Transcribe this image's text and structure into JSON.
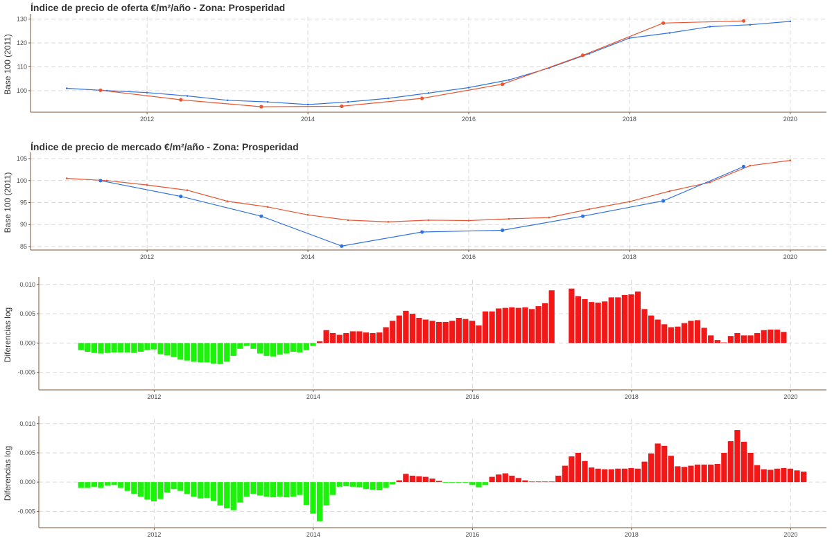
{
  "colors": {
    "red": "#f21818",
    "green": "#1bf30a",
    "blue": "#2f72e0",
    "orange": "#e9542f"
  },
  "chart_data": [
    {
      "type": "line",
      "title": "Índice de precio de oferta €/m²/año - Zona: Prosperidad",
      "ylabel": "Base 100 (2011)",
      "xlabel": "",
      "xlim": [
        2010.55,
        2020.45
      ],
      "ylim": [
        91.0,
        131.0
      ],
      "x_ticks": [
        {
          "value": 2012,
          "label": "2012"
        },
        {
          "value": 2014,
          "label": "2014"
        },
        {
          "value": 2016,
          "label": "2016"
        },
        {
          "value": 2018,
          "label": "2018"
        },
        {
          "value": 2020,
          "label": "2020"
        }
      ],
      "y_ticks": [
        {
          "value": 100,
          "label": "100"
        },
        {
          "value": 110,
          "label": "110"
        },
        {
          "value": 120,
          "label": "120"
        },
        {
          "value": 130,
          "label": "130"
        }
      ],
      "series": [
        {
          "color": "#2f72e0",
          "marker": "small",
          "x": [
            2011.0,
            2011.5,
            2012.0,
            2012.5,
            2013.0,
            2013.5,
            2014.0,
            2014.5,
            2015.0,
            2015.5,
            2016.0,
            2016.5,
            2017.0,
            2017.5,
            2018.0,
            2018.5,
            2019.0,
            2019.5,
            2020.0
          ],
          "y": [
            101.0,
            100.0,
            99.2,
            97.8,
            96.0,
            95.3,
            94.2,
            95.3,
            96.8,
            99.0,
            101.3,
            104.5,
            109.5,
            115.5,
            122.0,
            124.2,
            126.8,
            127.6,
            129.0
          ]
        },
        {
          "color": "#e9542f",
          "marker": "large",
          "x": [
            2011.42,
            2012.42,
            2013.42,
            2014.42,
            2015.42,
            2016.42,
            2017.42,
            2018.42,
            2019.42
          ],
          "y": [
            100.2,
            96.2,
            93.3,
            93.5,
            96.8,
            102.7,
            114.8,
            128.3,
            129.2
          ]
        }
      ]
    },
    {
      "type": "line",
      "title": "Índice de precio de mercado €/m²/año - Zona: Prosperidad",
      "ylabel": "Base 100 (2011)",
      "xlabel": "",
      "xlim": [
        2010.55,
        2020.45
      ],
      "ylim": [
        84.2,
        105.8
      ],
      "x_ticks": [
        {
          "value": 2012,
          "label": "2012"
        },
        {
          "value": 2014,
          "label": "2014"
        },
        {
          "value": 2016,
          "label": "2016"
        },
        {
          "value": 2018,
          "label": "2018"
        },
        {
          "value": 2020,
          "label": "2020"
        }
      ],
      "y_ticks": [
        {
          "value": 85,
          "label": "85"
        },
        {
          "value": 90,
          "label": "90"
        },
        {
          "value": 95,
          "label": "95"
        },
        {
          "value": 100,
          "label": "100"
        },
        {
          "value": 105,
          "label": "105"
        }
      ],
      "series": [
        {
          "color": "#e9542f",
          "marker": "small",
          "x": [
            2011.0,
            2011.5,
            2012.0,
            2012.5,
            2013.0,
            2013.5,
            2014.0,
            2014.5,
            2015.0,
            2015.5,
            2016.0,
            2016.5,
            2017.0,
            2017.5,
            2018.0,
            2018.5,
            2019.0,
            2019.5,
            2020.0
          ],
          "y": [
            100.5,
            100.0,
            99.0,
            97.8,
            95.3,
            94.0,
            92.2,
            91.0,
            90.6,
            91.0,
            90.9,
            91.3,
            91.6,
            93.5,
            95.2,
            97.6,
            99.6,
            103.4,
            104.6
          ]
        },
        {
          "color": "#2f72e0",
          "marker": "large",
          "x": [
            2011.42,
            2012.42,
            2013.42,
            2014.42,
            2015.42,
            2016.42,
            2017.42,
            2018.42,
            2019.42
          ],
          "y": [
            100.0,
            96.4,
            91.9,
            85.1,
            88.3,
            88.7,
            91.9,
            95.4,
            103.2
          ]
        }
      ]
    },
    {
      "type": "bar",
      "title": "",
      "ylabel": "Diferencias log",
      "xlabel": "",
      "xlim": [
        2010.55,
        2020.45
      ],
      "ylim": [
        -0.008,
        0.0108
      ],
      "x_ticks": [
        {
          "value": 2012,
          "label": "2012"
        },
        {
          "value": 2014,
          "label": "2014"
        },
        {
          "value": 2016,
          "label": "2016"
        },
        {
          "value": 2018,
          "label": "2018"
        },
        {
          "value": 2020,
          "label": "2020"
        }
      ],
      "y_ticks": [
        {
          "value": -0.005,
          "label": "-0.005"
        },
        {
          "value": 0,
          "label": "0.000"
        },
        {
          "value": 0.005,
          "label": "0.005"
        },
        {
          "value": 0.01,
          "label": "0.010"
        }
      ],
      "positive_color": "#f21818",
      "negative_color": "#1bf30a",
      "x_start": 2011.08,
      "x_step": 0.08333,
      "values": [
        -0.0012,
        -0.0015,
        -0.0017,
        -0.0018,
        -0.0017,
        -0.0016,
        -0.0016,
        -0.0016,
        -0.0017,
        -0.0015,
        -0.0012,
        -0.0011,
        -0.0019,
        -0.0021,
        -0.0024,
        -0.0028,
        -0.003,
        -0.0032,
        -0.0033,
        -0.0033,
        -0.0035,
        -0.0036,
        -0.0032,
        -0.0022,
        -0.001,
        -0.0005,
        -0.001,
        -0.0018,
        -0.0022,
        -0.0023,
        -0.002,
        -0.0018,
        -0.0015,
        -0.0016,
        -0.0012,
        -0.0005,
        0.0003,
        0.0022,
        0.0017,
        0.0014,
        0.0017,
        0.002,
        0.002,
        0.0018,
        0.0017,
        0.0018,
        0.0027,
        0.0038,
        0.0047,
        0.0055,
        0.005,
        0.0043,
        0.004,
        0.0038,
        0.0036,
        0.0036,
        0.0038,
        0.0043,
        0.0041,
        0.0038,
        0.003,
        0.0054,
        0.0054,
        0.0059,
        0.006,
        0.0061,
        0.006,
        0.0061,
        0.0058,
        0.0063,
        0.0068,
        0.009,
        null,
        null,
        0.0093,
        0.008,
        0.0075,
        0.007,
        0.0069,
        0.0071,
        0.0078,
        0.0078,
        0.0082,
        0.0083,
        0.0088,
        0.0058,
        0.0047,
        0.004,
        0.0032,
        0.0027,
        0.0028,
        0.0034,
        0.0038,
        0.0039,
        0.0026,
        0.0013,
        0.0005,
        0.0001,
        0.0012,
        0.0017,
        0.0013,
        0.0013,
        0.0017,
        0.0022,
        0.0023,
        0.0023,
        0.0019
      ]
    },
    {
      "type": "bar",
      "title": "",
      "ylabel": "Diferencias log",
      "xlabel": "",
      "xlim": [
        2010.55,
        2020.45
      ],
      "ylim": [
        -0.0078,
        0.0108
      ],
      "x_ticks": [
        {
          "value": 2012,
          "label": "2012"
        },
        {
          "value": 2014,
          "label": "2014"
        },
        {
          "value": 2016,
          "label": "2016"
        },
        {
          "value": 2018,
          "label": "2018"
        },
        {
          "value": 2020,
          "label": "2020"
        }
      ],
      "y_ticks": [
        {
          "value": -0.005,
          "label": "-0.005"
        },
        {
          "value": 0,
          "label": "0.000"
        },
        {
          "value": 0.005,
          "label": "0.005"
        },
        {
          "value": 0.01,
          "label": "0.010"
        }
      ],
      "positive_color": "#f21818",
      "negative_color": "#1bf30a",
      "x_start": 2011.08,
      "x_step": 0.08333,
      "values": [
        -0.001,
        -0.001,
        -0.0008,
        -0.001,
        -0.0006,
        -0.0005,
        -0.001,
        -0.0015,
        -0.002,
        -0.0025,
        -0.003,
        -0.0033,
        -0.0029,
        -0.0018,
        -0.0012,
        -0.0015,
        -0.002,
        -0.0025,
        -0.0028,
        -0.0027,
        -0.0032,
        -0.004,
        -0.0045,
        -0.0048,
        -0.0035,
        -0.0025,
        -0.002,
        -0.0023,
        -0.0025,
        -0.0026,
        -0.0025,
        -0.0026,
        -0.0025,
        -0.0022,
        -0.0039,
        -0.0054,
        -0.0067,
        -0.004,
        -0.0022,
        -0.0008,
        -0.0007,
        -0.0008,
        -0.0009,
        -0.0012,
        -0.0013,
        -0.0014,
        -0.001,
        -0.0004,
        0.0003,
        0.0014,
        0.0011,
        0.001,
        0.0009,
        0.0006,
        0.0002,
        -0.0001,
        -0.0001,
        -0.0001,
        -0.0001,
        -0.0005,
        -0.0009,
        -0.0005,
        0.0009,
        0.0013,
        0.0015,
        0.0011,
        0.0007,
        0.0003,
        0.0001,
        0.0001,
        0.0001,
        0.0001,
        0.0011,
        0.0028,
        0.0044,
        0.005,
        0.0036,
        0.0025,
        0.0023,
        0.0022,
        0.0022,
        0.0023,
        0.0023,
        0.0024,
        0.0023,
        0.0035,
        0.0049,
        0.0066,
        0.0062,
        0.0045,
        0.0027,
        0.0026,
        0.0028,
        0.003,
        0.003,
        0.003,
        0.0031,
        0.005,
        0.007,
        0.0089,
        0.0069,
        0.005,
        0.0029,
        0.0022,
        0.0021,
        0.0023,
        0.0024,
        0.0023,
        0.002,
        0.0018
      ]
    }
  ]
}
